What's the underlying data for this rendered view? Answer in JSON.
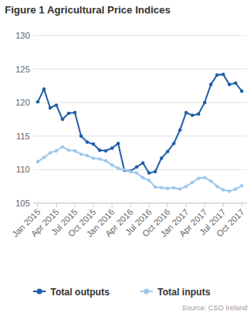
{
  "chart_data": {
    "type": "line",
    "title": "Figure 1 Agricultural Price Indices",
    "source": "Source: CSO Ireland",
    "categories": [
      "Jan 2015",
      null,
      null,
      "Apr 2015",
      null,
      null,
      "Jul 2015",
      null,
      null,
      "Oct 2015",
      null,
      null,
      "Jan 2016",
      null,
      null,
      "Apr 2016",
      null,
      null,
      "Jul 2016",
      null,
      null,
      "Oct 2016",
      null,
      null,
      "Jan 2017",
      null,
      null,
      "Apr 2017",
      null,
      null,
      "Jul 2017",
      null,
      null,
      "Oct 2017"
    ],
    "series": [
      {
        "name": "Total outputs",
        "color": "#1f5ea8",
        "marker": "circle",
        "values": [
          120.1,
          122.0,
          119.2,
          119.6,
          117.5,
          118.4,
          118.5,
          115.0,
          114.1,
          113.8,
          112.9,
          112.8,
          113.2,
          113.9,
          109.9,
          109.8,
          110.4,
          111.0,
          109.5,
          109.7,
          111.7,
          112.7,
          113.9,
          115.9,
          118.5,
          118.1,
          118.3,
          120.0,
          122.7,
          124.1,
          124.2,
          122.7,
          122.9,
          121.7
        ]
      },
      {
        "name": "Total inputs",
        "color": "#9dc8ee",
        "marker": "circle",
        "values": [
          111.2,
          111.8,
          112.5,
          112.8,
          113.4,
          112.9,
          112.8,
          112.3,
          112.1,
          111.7,
          111.6,
          111.3,
          110.7,
          110.2,
          110.0,
          109.7,
          109.5,
          108.8,
          108.4,
          107.4,
          107.3,
          107.2,
          107.3,
          107.1,
          107.5,
          108.1,
          108.7,
          108.8,
          108.3,
          107.5,
          107.0,
          106.8,
          107.1,
          107.6
        ]
      }
    ],
    "ylim": [
      105,
      130
    ],
    "yticks": [
      105,
      110,
      115,
      120,
      125,
      130
    ],
    "grid": true,
    "legend": "bottom"
  }
}
